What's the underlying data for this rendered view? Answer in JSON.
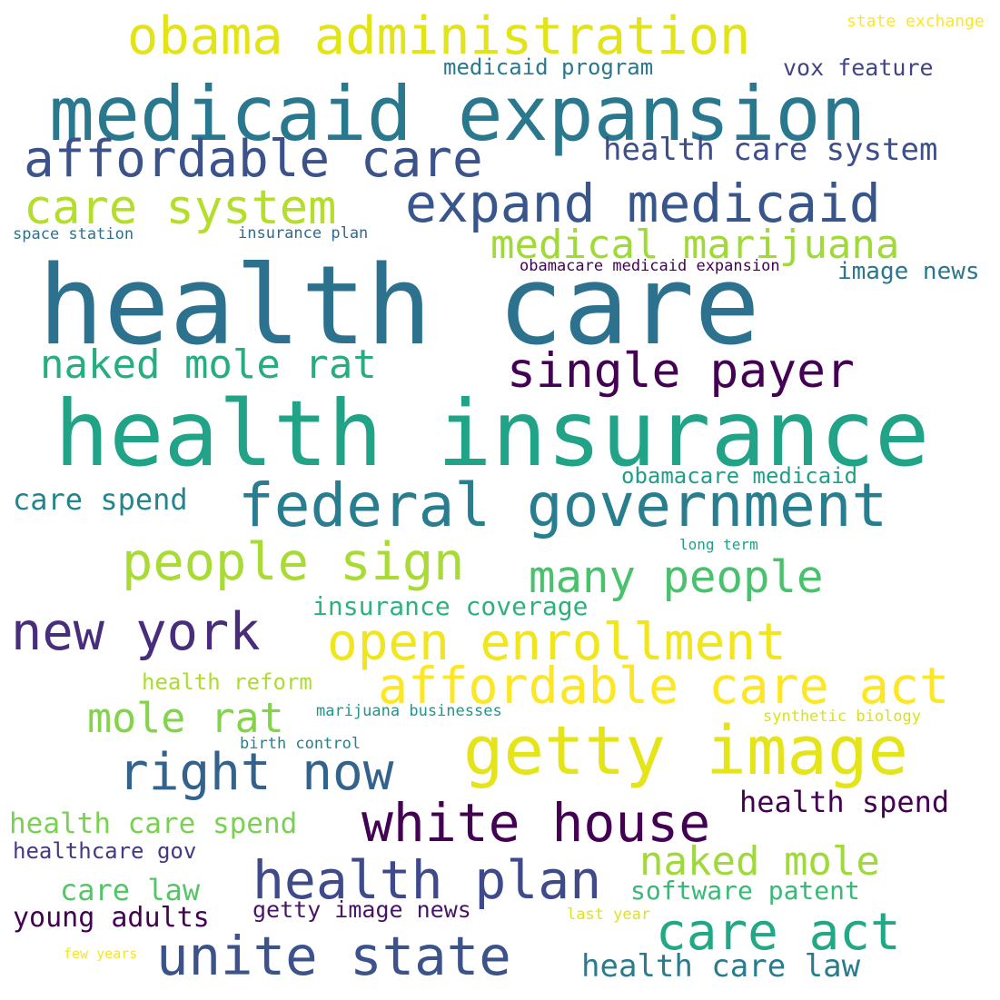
{
  "words": [
    {
      "text": "health care",
      "color": "#2c728e"
    },
    {
      "text": "health insurance",
      "color": "#20a386"
    },
    {
      "text": "medicaid expansion",
      "color": "#2a788e"
    },
    {
      "text": "federal government",
      "color": "#287d8e"
    },
    {
      "text": "getty image",
      "color": "#e5e419"
    },
    {
      "text": "obama administration",
      "color": "#e2e418"
    },
    {
      "text": "affordable care",
      "color": "#3b528b"
    },
    {
      "text": "expand medicaid",
      "color": "#39568c"
    },
    {
      "text": "care system",
      "color": "#b5de2b"
    },
    {
      "text": "single payer",
      "color": "#440154"
    },
    {
      "text": "white house",
      "color": "#440154"
    },
    {
      "text": "affordable care act",
      "color": "#fde725"
    },
    {
      "text": "open enrollment",
      "color": "#f1e51d"
    },
    {
      "text": "health plan",
      "color": "#3e4a89"
    },
    {
      "text": "unite state",
      "color": "#3b528b"
    },
    {
      "text": "people sign",
      "color": "#a8db34"
    },
    {
      "text": "new york",
      "color": "#472d7b"
    },
    {
      "text": "right now",
      "color": "#33638d"
    },
    {
      "text": "many people",
      "color": "#4ac16d"
    },
    {
      "text": "care act",
      "color": "#22a884"
    },
    {
      "text": "naked mole rat",
      "color": "#27ad81"
    },
    {
      "text": "medical marijuana",
      "color": "#a0da39"
    },
    {
      "text": "naked mole",
      "color": "#9fda3a"
    },
    {
      "text": "mole rat",
      "color": "#84d44b"
    },
    {
      "text": "health care system",
      "color": "#3d4e8a"
    },
    {
      "text": "health care spend",
      "color": "#7ad151"
    },
    {
      "text": "health care law",
      "color": "#287c8e"
    },
    {
      "text": "health spend",
      "color": "#440154"
    },
    {
      "text": "care spend",
      "color": "#25858e"
    },
    {
      "text": "insurance coverage",
      "color": "#2db27d"
    },
    {
      "text": "care law",
      "color": "#54c568"
    },
    {
      "text": "software patent",
      "color": "#38b977"
    },
    {
      "text": "vox feature",
      "color": "#414487"
    },
    {
      "text": "medicaid program",
      "color": "#2a788e"
    },
    {
      "text": "image news",
      "color": "#2a768e"
    },
    {
      "text": "obamacare medicaid",
      "color": "#1f9e89"
    },
    {
      "text": "healthcare gov",
      "color": "#443983"
    },
    {
      "text": "young adults",
      "color": "#440154"
    },
    {
      "text": "getty image news",
      "color": "#481467"
    },
    {
      "text": "health reform",
      "color": "#addc30"
    },
    {
      "text": "state exchange",
      "color": "#fbe723"
    },
    {
      "text": "space station",
      "color": "#2c728e"
    },
    {
      "text": "insurance plan",
      "color": "#306a8e"
    },
    {
      "text": "obamacare medicaid expansion",
      "color": "#440154"
    },
    {
      "text": "long term",
      "color": "#1fa187"
    },
    {
      "text": "marijuana businesses",
      "color": "#1f968b"
    },
    {
      "text": "synthetic biology",
      "color": "#d8e219"
    },
    {
      "text": "birth control",
      "color": "#27808e"
    },
    {
      "text": "last year",
      "color": "#dfe318"
    },
    {
      "text": "few years",
      "color": "#f6e620"
    }
  ]
}
